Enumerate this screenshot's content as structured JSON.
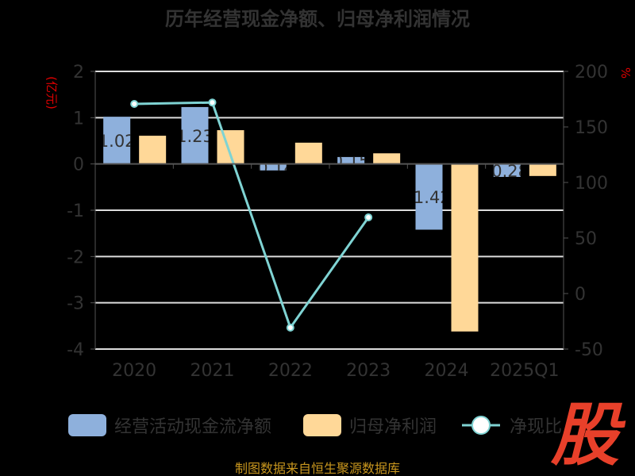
{
  "chart_data": {
    "type": "bar",
    "title": "历年经营现金净额、归母净利润情况",
    "categories": [
      "2020",
      "2021",
      "2022",
      "2023",
      "2024",
      "2025Q1"
    ],
    "ylabel": "(亿元)",
    "y2label": "%",
    "ylim": [
      -4,
      2
    ],
    "y2lim": [
      -50,
      200
    ],
    "yticks": [
      "2",
      "1",
      "0",
      "-1",
      "-2",
      "-3",
      "-4"
    ],
    "y2ticks": [
      "200",
      "150",
      "100",
      "50",
      "0",
      "-50"
    ],
    "grid": true,
    "legend_position": "bottom",
    "series": [
      {
        "name": "经营活动现金流净额",
        "type": "bar",
        "axis": "left",
        "color": "#8eb0dc",
        "values": [
          1.02,
          1.23,
          -0.14,
          0.15,
          -1.42,
          -0.28
        ],
        "labels": [
          "1.02",
          "1.23",
          "-0.14",
          "0.15",
          "-1.42",
          "-0.28"
        ]
      },
      {
        "name": "归母净利润",
        "type": "bar",
        "axis": "left",
        "color": "#ffd898",
        "values": [
          0.61,
          0.73,
          0.46,
          0.23,
          -3.62,
          -0.26
        ]
      },
      {
        "name": "净现比",
        "type": "line",
        "axis": "right",
        "color": "#7fd3d3",
        "values": [
          170.7,
          172,
          -30.7,
          68.6,
          null,
          null
        ]
      }
    ]
  },
  "footer": {
    "source": "制图数据来自恒生聚源数据库"
  },
  "logo": {
    "text": "股",
    "color": "#e8402a"
  }
}
